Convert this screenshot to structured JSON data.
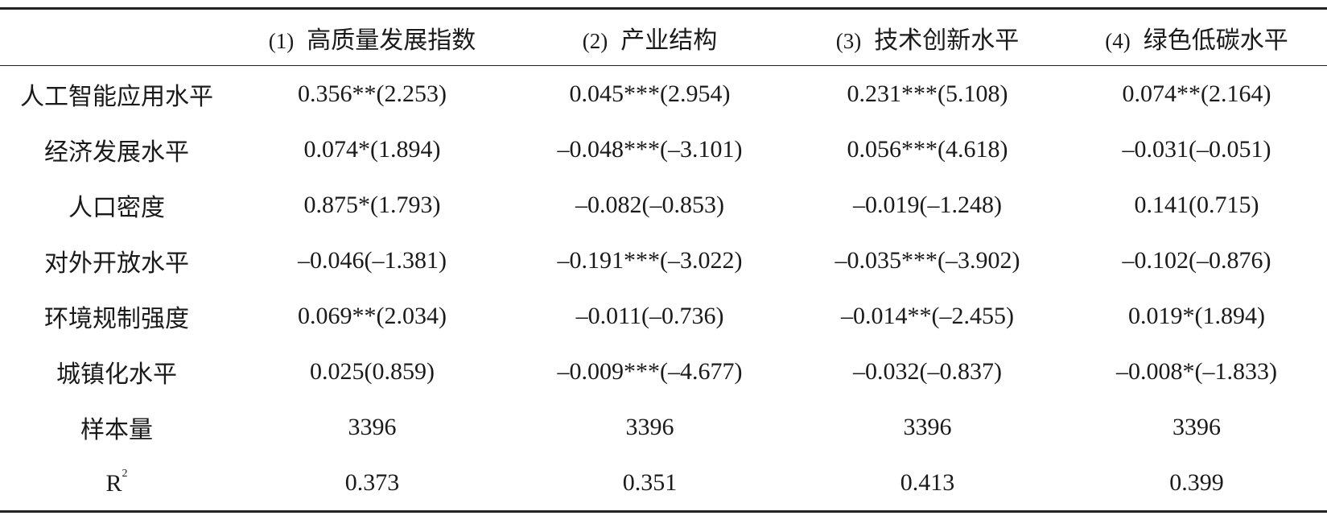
{
  "table": {
    "columns": [
      {
        "number": "(1)",
        "title": "高质量发展指数"
      },
      {
        "number": "(2)",
        "title": "产业结构"
      },
      {
        "number": "(3)",
        "title": "技术创新水平"
      },
      {
        "number": "(4)",
        "title": "绿色低碳水平"
      }
    ],
    "rows": [
      {
        "label": "人工智能应用水平",
        "cells": [
          "0.356**(2.253)",
          "0.045***(2.954)",
          "0.231***(5.108)",
          "0.074**(2.164)"
        ]
      },
      {
        "label": "经济发展水平",
        "cells": [
          "0.074*(1.894)",
          "–0.048***(–3.101)",
          "0.056***(4.618)",
          "–0.031(–0.051)"
        ]
      },
      {
        "label": "人口密度",
        "cells": [
          "0.875*(1.793)",
          "–0.082(–0.853)",
          "–0.019(–1.248)",
          "0.141(0.715)"
        ]
      },
      {
        "label": "对外开放水平",
        "cells": [
          "–0.046(–1.381)",
          "–0.191***(–3.022)",
          "–0.035***(–3.902)",
          "–0.102(–0.876)"
        ]
      },
      {
        "label": "环境规制强度",
        "cells": [
          "0.069**(2.034)",
          "–0.011(–0.736)",
          "–0.014**(–2.455)",
          "0.019*(1.894)"
        ]
      },
      {
        "label": "城镇化水平",
        "cells": [
          "0.025(0.859)",
          "–0.009***(–4.677)",
          "–0.032(–0.837)",
          "–0.008*(–1.833)"
        ]
      },
      {
        "label": "样本量",
        "cells": [
          "3396",
          "3396",
          "3396",
          "3396"
        ]
      },
      {
        "label": "R",
        "label_sup": "2",
        "cells": [
          "0.373",
          "0.351",
          "0.413",
          "0.399"
        ]
      }
    ]
  }
}
